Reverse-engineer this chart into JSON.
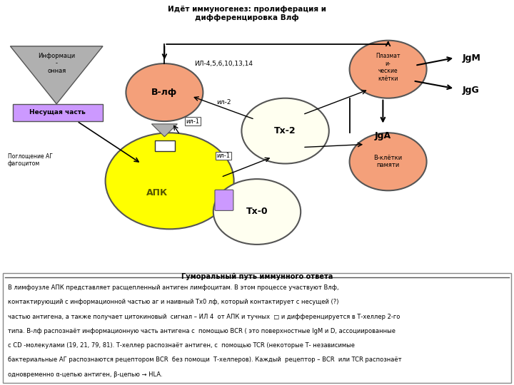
{
  "title": "Идёт иммуногенез: пролиферация и\nдифференцировка Влф",
  "bg_diagram": "#ffffff",
  "bg_text": "#daeef3",
  "apk_color": "#ffff00",
  "blf_color": "#f4a07a",
  "th2_color": "#fffff0",
  "th0_color": "#fffff0",
  "plasma_color": "#f4a07a",
  "memory_color": "#f4a07a",
  "triangle_color": "#b0b0b0",
  "rect_color": "#cc99ff",
  "summary_title": "Гуморальный путь иммунного ответа",
  "summary_line1": "В лимфоузле АПК представляет расщепленный антиген лимфоцитам. В этом процессе участвуют Влф,",
  "summary_line2": "контактирующий с информационной частью аг и наивный Тх0 лф, который контактирует с несущей (?)",
  "summary_line3": "частью антигена, а также получает цитокиновый  сигнал – ИЛ 4  от АПК и тучных  □ и дифференцируется в Т-хеллер 2-го",
  "summary_line4": "типа. В-лф распознаёт информационную часть антигена с  помощью BCR ( это поверхностные IgM и D, ассоциированные",
  "summary_line5": "с CD -молекулами (19, 21, 79, 81). Т-хеллер распознаёт антиген, с  помощью TCR (некоторые Т- независимые",
  "summary_line6": "бактериальные АГ распознаются рецептором BCR  без помощи  Т-хелперов). Каждый  рецептор – BCR  или TCR распознаёт",
  "summary_line7": "одновременно α-цепью антиген, β-цепью → HLA."
}
